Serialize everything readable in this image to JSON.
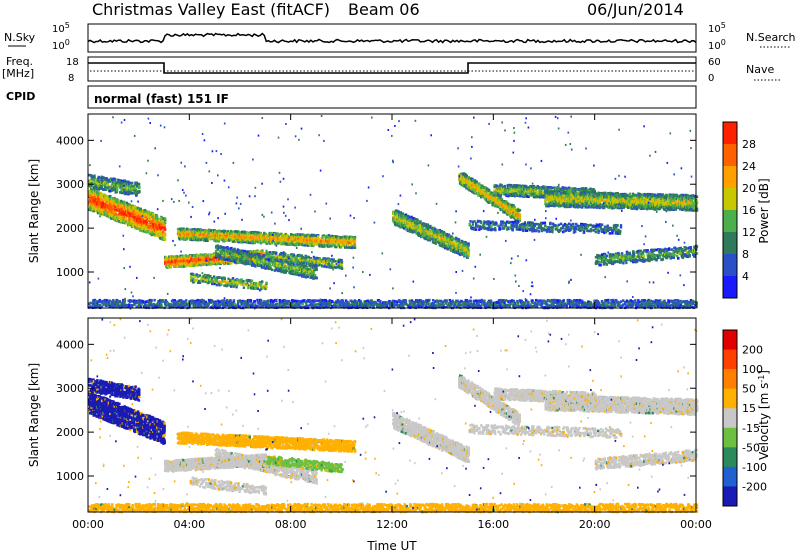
{
  "header": {
    "title": "Christmas Valley East (fitACF)",
    "beam": "Beam 06",
    "date": "06/Jun/2014"
  },
  "strips": {
    "nsky_label": "N.Sky",
    "nsearch_label": "N.Search",
    "nsky_ticks": [
      "10^5",
      "10^0"
    ],
    "nsearch_ticks": [
      "10^5",
      "10^0"
    ],
    "freq_label_1": "Freq.",
    "freq_label_2": "[MHz]",
    "freq_ticks": [
      "18",
      "8"
    ],
    "nave_label": "Nave",
    "nave_ticks": [
      "60",
      "0"
    ],
    "cpid_label": "CPID",
    "cpid_text": "normal (fast) 151 IF"
  },
  "chart_data": [
    {
      "type": "heatmap",
      "panel": "power",
      "xlabel": "",
      "ylabel": "Slant Range [km]",
      "x_ticks": [
        "00:00",
        "04:00",
        "08:00",
        "12:00",
        "16:00",
        "20:00",
        "00:00"
      ],
      "y_ticks": [
        1000,
        2000,
        3000,
        4000
      ],
      "ylim": [
        180,
        4600
      ],
      "xlim_hours": [
        0,
        24
      ],
      "colorbar": {
        "label": "Power [dB]",
        "ticks": [
          "4",
          "8",
          "12",
          "16",
          "20",
          "24",
          "28"
        ],
        "colors": [
          "#1a1aff",
          "#2a50c8",
          "#2f7a5a",
          "#4caf4c",
          "#c8c800",
          "#ffa000",
          "#ff6000",
          "#ff2000"
        ]
      }
    },
    {
      "type": "heatmap",
      "panel": "velocity",
      "xlabel": "Time UT",
      "ylabel": "Slant Range [km]",
      "x_ticks": [
        "00:00",
        "04:00",
        "08:00",
        "12:00",
        "16:00",
        "20:00",
        "00:00"
      ],
      "y_ticks": [
        1000,
        2000,
        3000,
        4000
      ],
      "ylim": [
        180,
        4600
      ],
      "xlim_hours": [
        0,
        24
      ],
      "colorbar": {
        "label": "Velocity [m s^-1]",
        "ticks": [
          "200",
          "100",
          "50",
          "15",
          "-15",
          "-50",
          "-100",
          "-200"
        ],
        "colors": [
          "#1a1ab4",
          "#2060d0",
          "#2a8a5a",
          "#6cc040",
          "#c8c8c8",
          "#ffb000",
          "#ff8000",
          "#ff4000",
          "#e00000"
        ]
      }
    }
  ]
}
